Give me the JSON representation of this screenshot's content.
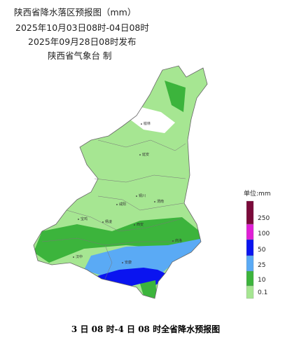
{
  "header": {
    "title": "陕西省降水落区预报图（mm）",
    "valid_period": "2025年10月03日08时-04日08时",
    "issued": "2025年09月28日08时发布",
    "publisher": "陕西省气象台 制"
  },
  "map": {
    "cities": [
      "榆林",
      "延安",
      "铜川",
      "渭南",
      "咸阳",
      "西安",
      "宝鸡",
      "杨凌",
      "汉中",
      "安康",
      "商洛"
    ]
  },
  "legend": {
    "unit": "单位:mm",
    "levels": [
      {
        "label": "250",
        "color": "#7a0a3a"
      },
      {
        "label": "100",
        "color": "#e01fd6"
      },
      {
        "label": "50",
        "color": "#0a14f0"
      },
      {
        "label": "25",
        "color": "#5aaaf5"
      },
      {
        "label": "10",
        "color": "#3cb43c"
      },
      {
        "label": "0.1",
        "color": "#a6e692"
      }
    ]
  },
  "caption": "3 日 08 时-4 日 08 时全省降水预报图"
}
